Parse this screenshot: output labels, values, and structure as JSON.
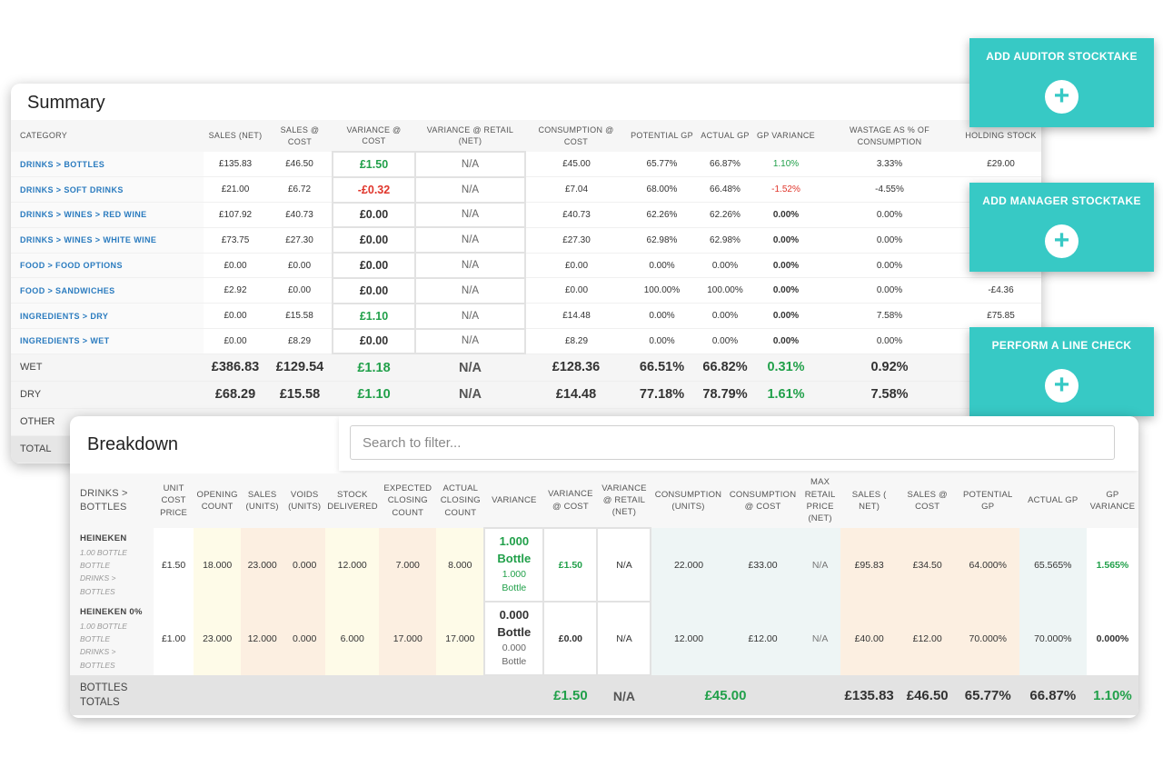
{
  "summary": {
    "title": "Summary",
    "headers": [
      "CATEGORY",
      "SALES (NET)",
      "SALES @ COST",
      "VARIANCE @ COST",
      "VARIANCE @ RETAIL (NET)",
      "CONSUMPTION @ COST",
      "POTENTIAL GP",
      "ACTUAL GP",
      "GP VARIANCE",
      "WASTAGE AS % OF CONSUMPTION",
      "HOLDING STOCK"
    ],
    "rows": [
      {
        "category": "DRINKS > BOTTLES",
        "sales_net": "£135.83",
        "sales_cost": "£46.50",
        "variance_cost": "£1.50",
        "variance_retail": "N/A",
        "consumption_cost": "£45.00",
        "potential_gp": "65.77%",
        "actual_gp": "66.87%",
        "gp_variance": "1.10%",
        "wastage": "3.33%",
        "holding_stock": "£29.00"
      },
      {
        "category": "DRINKS > SOFT DRINKS",
        "sales_net": "£21.00",
        "sales_cost": "£6.72",
        "variance_cost": "-£0.32",
        "variance_retail": "N/A",
        "consumption_cost": "£7.04",
        "potential_gp": "68.00%",
        "actual_gp": "66.48%",
        "gp_variance": "-1.52%",
        "wastage": "-4.55%",
        "holding_stock": ""
      },
      {
        "category": "DRINKS > WINES > RED WINE",
        "sales_net": "£107.92",
        "sales_cost": "£40.73",
        "variance_cost": "£0.00",
        "variance_retail": "N/A",
        "consumption_cost": "£40.73",
        "potential_gp": "62.26%",
        "actual_gp": "62.26%",
        "gp_variance": "0.00%",
        "wastage": "0.00%",
        "holding_stock": ""
      },
      {
        "category": "DRINKS > WINES > WHITE WINE",
        "sales_net": "£73.75",
        "sales_cost": "£27.30",
        "variance_cost": "£0.00",
        "variance_retail": "N/A",
        "consumption_cost": "£27.30",
        "potential_gp": "62.98%",
        "actual_gp": "62.98%",
        "gp_variance": "0.00%",
        "wastage": "0.00%",
        "holding_stock": ""
      },
      {
        "category": "FOOD > FOOD OPTIONS",
        "sales_net": "£0.00",
        "sales_cost": "£0.00",
        "variance_cost": "£0.00",
        "variance_retail": "N/A",
        "consumption_cost": "£0.00",
        "potential_gp": "0.00%",
        "actual_gp": "0.00%",
        "gp_variance": "0.00%",
        "wastage": "0.00%",
        "holding_stock": ""
      },
      {
        "category": "FOOD > SANDWICHES",
        "sales_net": "£2.92",
        "sales_cost": "£0.00",
        "variance_cost": "£0.00",
        "variance_retail": "N/A",
        "consumption_cost": "£0.00",
        "potential_gp": "100.00%",
        "actual_gp": "100.00%",
        "gp_variance": "0.00%",
        "wastage": "0.00%",
        "holding_stock": "-£4.36"
      },
      {
        "category": "INGREDIENTS > DRY",
        "sales_net": "£0.00",
        "sales_cost": "£15.58",
        "variance_cost": "£1.10",
        "variance_retail": "N/A",
        "consumption_cost": "£14.48",
        "potential_gp": "0.00%",
        "actual_gp": "0.00%",
        "gp_variance": "0.00%",
        "wastage": "7.58%",
        "holding_stock": "£75.85"
      },
      {
        "category": "INGREDIENTS > WET",
        "sales_net": "£0.00",
        "sales_cost": "£8.29",
        "variance_cost": "£0.00",
        "variance_retail": "N/A",
        "consumption_cost": "£8.29",
        "potential_gp": "0.00%",
        "actual_gp": "0.00%",
        "gp_variance": "0.00%",
        "wastage": "0.00%",
        "holding_stock": ""
      }
    ],
    "groups": [
      {
        "label": "WET",
        "sales_net": "£386.83",
        "sales_cost": "£129.54",
        "variance_cost": "£1.18",
        "variance_retail": "N/A",
        "consumption_cost": "£128.36",
        "potential_gp": "66.51%",
        "actual_gp": "66.82%",
        "gp_variance": "0.31%",
        "wastage": "0.92%"
      },
      {
        "label": "DRY",
        "sales_net": "£68.29",
        "sales_cost": "£15.58",
        "variance_cost": "£1.10",
        "variance_retail": "N/A",
        "consumption_cost": "£14.48",
        "potential_gp": "77.18%",
        "actual_gp": "78.79%",
        "gp_variance": "1.61%",
        "wastage": "7.58%"
      },
      {
        "label": "OTHER"
      },
      {
        "label": "TOTAL"
      }
    ]
  },
  "actions": {
    "auditor": {
      "label": "ADD AUDITOR STOCKTAKE",
      "icon": "plus-icon"
    },
    "manager": {
      "label": "ADD MANAGER STOCKTAKE",
      "icon": "plus-icon"
    },
    "line_check": {
      "label": "PERFORM A LINE CHECK",
      "icon": "plus-icon"
    }
  },
  "breakdown": {
    "title": "Breakdown",
    "search_placeholder": "Search to filter...",
    "headers": {
      "category": "DRINKS > BOTTLES",
      "unit_cost": "UNIT COST PRICE",
      "opening": "OPENING COUNT",
      "sales_units": "SALES (UNITS)",
      "voids": "VOIDS (UNITS)",
      "delivered": "STOCK DELIVERED",
      "expected_closing": "EXPECTED CLOSING COUNT",
      "actual_closing": "ACTUAL CLOSING COUNT",
      "variance": "VARIANCE",
      "variance_cost": "VARIANCE @ COST",
      "variance_retail": "VARIANCE @ RETAIL (NET)",
      "consumption_units": "CONSUMPTION (UNITS)",
      "consumption_cost": "CONSUMPTION @ COST",
      "max_retail": "MAX RETAIL PRICE (NET)",
      "sales_net": "SALES ( NET)",
      "sales_cost": "SALES @ COST",
      "potential_gp": "POTENTIAL GP",
      "actual_gp": "ACTUAL GP",
      "gp_variance": "GP VARIANCE"
    },
    "rows": [
      {
        "name": "HEINEKEN",
        "sub1": "1.00 BOTTLE",
        "sub2": "BOTTLE",
        "sub3": "DRINKS >",
        "sub4": "BOTTLES",
        "unit_cost": "£1.50",
        "opening": "18.000",
        "sales_units": "23.000",
        "voids": "0.000",
        "delivered": "12.000",
        "expected_closing": "7.000",
        "actual_closing": "8.000",
        "variance_qty": "1.000",
        "variance_unit": "Bottle",
        "variance_qty_small": "1.000",
        "variance_unit_small": "Bottle",
        "variance_cost": "£1.50",
        "variance_retail": "N/A",
        "consumption_units": "22.000",
        "consumption_cost": "£33.00",
        "max_retail": "N/A",
        "sales_net": "£95.83",
        "sales_cost": "£34.50",
        "potential_gp": "64.000%",
        "actual_gp": "65.565%",
        "gp_variance": "1.565%"
      },
      {
        "name": "HEINEKEN 0%",
        "sub1": "1.00 BOTTLE",
        "sub2": "BOTTLE",
        "sub3": "DRINKS >",
        "sub4": "BOTTLES",
        "unit_cost": "£1.00",
        "opening": "23.000",
        "sales_units": "12.000",
        "voids": "0.000",
        "delivered": "6.000",
        "expected_closing": "17.000",
        "actual_closing": "17.000",
        "variance_qty": "0.000",
        "variance_unit": "Bottle",
        "variance_qty_small": "0.000",
        "variance_unit_small": "Bottle",
        "variance_cost": "£0.00",
        "variance_retail": "N/A",
        "consumption_units": "12.000",
        "consumption_cost": "£12.00",
        "max_retail": "N/A",
        "sales_net": "£40.00",
        "sales_cost": "£12.00",
        "potential_gp": "70.000%",
        "actual_gp": "70.000%",
        "gp_variance": "0.000%"
      }
    ],
    "totals": {
      "label_1": "BOTTLES",
      "label_2": "TOTALS",
      "variance_cost": "£1.50",
      "variance_retail": "N/A",
      "consumption_cost": "£45.00",
      "sales_net": "£135.83",
      "sales_cost": "£46.50",
      "potential_gp": "65.77%",
      "actual_gp": "66.87%",
      "gp_variance": "1.10%"
    }
  },
  "colors": {
    "accent": "#37c9c5",
    "link": "#2a7bbf",
    "positive": "#21a04a",
    "negative": "#e0352b"
  }
}
